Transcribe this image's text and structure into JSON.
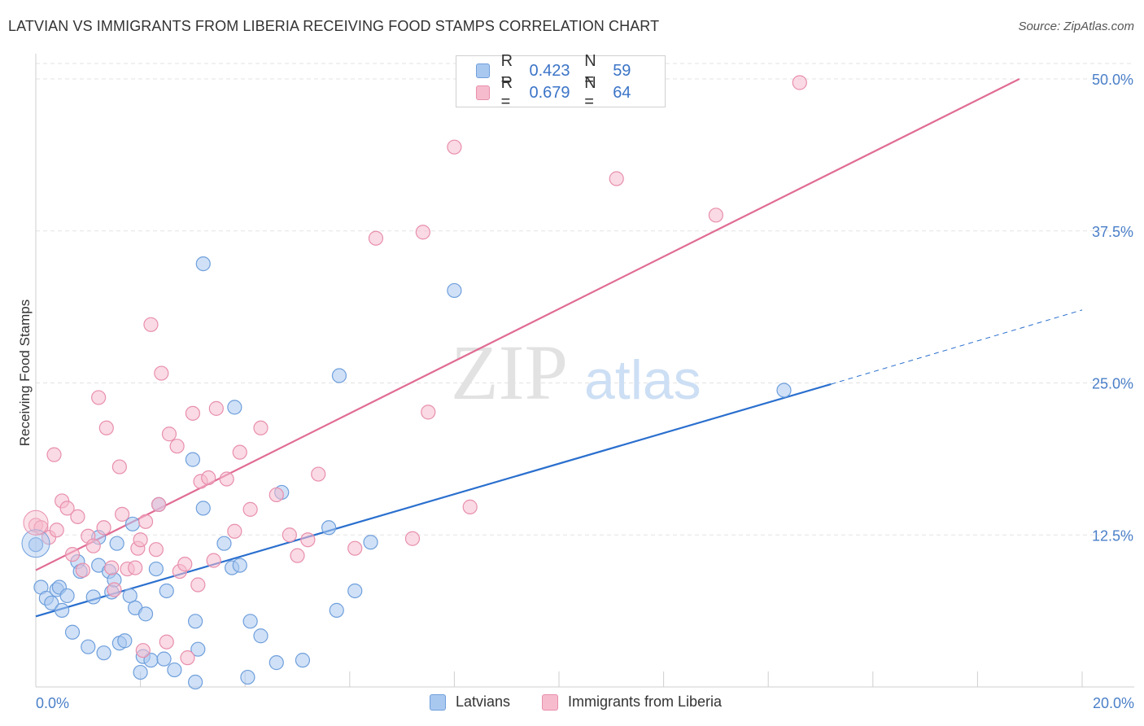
{
  "title": "LATVIAN VS IMMIGRANTS FROM LIBERIA RECEIVING FOOD STAMPS CORRELATION CHART",
  "source": "Source: ZipAtlas.com",
  "watermark": {
    "zip": "ZIP",
    "atlas": "atlas"
  },
  "colors": {
    "latvian_fill": "#a9c8f0",
    "latvian_stroke": "#6f9fdc",
    "latvian_line": "#2a6fce",
    "liberia_fill": "#f6bccd",
    "liberia_stroke": "#e88fac",
    "liberia_line": "#e06c94",
    "grid": "#e3e3e3",
    "tick_text": "#4a7fc8"
  },
  "legend": {
    "rows": [
      {
        "r_label": "R =",
        "r_value": "0.423",
        "n_label": "N =",
        "n_value": "59"
      },
      {
        "r_label": "R =",
        "r_value": "0.679",
        "n_label": "N =",
        "n_value": "64"
      }
    ]
  },
  "bottom_legend": [
    "Latvians",
    "Immigrants from Liberia"
  ],
  "chart_data": {
    "type": "scatter",
    "title": "LATVIAN VS IMMIGRANTS FROM LIBERIA RECEIVING FOOD STAMPS CORRELATION CHART",
    "xlabel": "",
    "ylabel": "Receiving Food Stamps",
    "xlim": [
      0,
      20
    ],
    "ylim": [
      0,
      50
    ],
    "x_tick_labels": [
      "0.0%",
      "20.0%"
    ],
    "y_ticks": [
      12.5,
      25.0,
      37.5,
      50.0
    ],
    "y_tick_labels": [
      "12.5%",
      "25.0%",
      "37.5%",
      "50.0%"
    ],
    "grid": true,
    "legend_position": "top-center",
    "series": [
      {
        "name": "Latvians",
        "r": 0.423,
        "n": 59,
        "trend": {
          "x": [
            0,
            15.2
          ],
          "y": [
            5.8,
            24.9
          ],
          "dashed_extension": {
            "x": [
              15.2,
              20.0
            ],
            "y": [
              24.9,
              31.0
            ]
          }
        },
        "points": [
          [
            0.0,
            11.7
          ],
          [
            0.1,
            8.2
          ],
          [
            0.2,
            7.3
          ],
          [
            0.3,
            6.9
          ],
          [
            0.4,
            8.0
          ],
          [
            0.45,
            8.2
          ],
          [
            0.5,
            6.3
          ],
          [
            0.6,
            7.5
          ],
          [
            0.7,
            4.5
          ],
          [
            0.8,
            10.3
          ],
          [
            0.85,
            9.5
          ],
          [
            1.0,
            3.3
          ],
          [
            1.1,
            7.4
          ],
          [
            1.2,
            12.3
          ],
          [
            1.2,
            10.0
          ],
          [
            1.3,
            2.8
          ],
          [
            1.4,
            9.5
          ],
          [
            1.45,
            7.8
          ],
          [
            1.5,
            8.8
          ],
          [
            1.55,
            11.8
          ],
          [
            1.6,
            3.6
          ],
          [
            1.7,
            3.8
          ],
          [
            1.8,
            7.5
          ],
          [
            1.85,
            13.4
          ],
          [
            1.9,
            6.5
          ],
          [
            2.0,
            1.2
          ],
          [
            2.05,
            2.5
          ],
          [
            2.1,
            6.0
          ],
          [
            2.2,
            2.2
          ],
          [
            2.3,
            9.7
          ],
          [
            2.35,
            15.0
          ],
          [
            2.45,
            2.3
          ],
          [
            2.5,
            7.9
          ],
          [
            2.65,
            1.4
          ],
          [
            3.0,
            18.7
          ],
          [
            3.05,
            5.4
          ],
          [
            3.05,
            0.4
          ],
          [
            3.1,
            3.1
          ],
          [
            3.2,
            14.7
          ],
          [
            3.2,
            34.8
          ],
          [
            3.6,
            11.8
          ],
          [
            3.75,
            9.8
          ],
          [
            3.8,
            23.0
          ],
          [
            3.9,
            10.0
          ],
          [
            4.05,
            0.8
          ],
          [
            4.1,
            5.4
          ],
          [
            4.3,
            4.2
          ],
          [
            4.6,
            2.0
          ],
          [
            4.7,
            16.0
          ],
          [
            5.1,
            2.2
          ],
          [
            5.6,
            13.1
          ],
          [
            5.8,
            25.6
          ],
          [
            5.75,
            6.3
          ],
          [
            6.1,
            7.9
          ],
          [
            6.4,
            11.9
          ],
          [
            8.0,
            32.6
          ],
          [
            14.3,
            24.4
          ]
        ]
      },
      {
        "name": "Immigrants from Liberia",
        "r": 0.679,
        "n": 64,
        "trend": {
          "x": [
            0,
            18.8
          ],
          "y": [
            9.6,
            50.0
          ]
        },
        "points": [
          [
            0.0,
            13.3
          ],
          [
            0.1,
            13.1
          ],
          [
            0.25,
            12.3
          ],
          [
            0.35,
            19.1
          ],
          [
            0.4,
            12.9
          ],
          [
            0.5,
            15.3
          ],
          [
            0.6,
            14.7
          ],
          [
            0.7,
            10.9
          ],
          [
            0.8,
            14.0
          ],
          [
            0.9,
            9.6
          ],
          [
            1.0,
            12.4
          ],
          [
            1.1,
            11.6
          ],
          [
            1.2,
            23.8
          ],
          [
            1.3,
            13.1
          ],
          [
            1.35,
            21.3
          ],
          [
            1.45,
            9.8
          ],
          [
            1.5,
            8.0
          ],
          [
            1.6,
            18.1
          ],
          [
            1.65,
            14.2
          ],
          [
            1.75,
            9.7
          ],
          [
            1.9,
            9.8
          ],
          [
            1.95,
            11.4
          ],
          [
            2.0,
            12.1
          ],
          [
            2.05,
            3.0
          ],
          [
            2.1,
            13.6
          ],
          [
            2.2,
            29.8
          ],
          [
            2.3,
            11.3
          ],
          [
            2.35,
            15.0
          ],
          [
            2.4,
            25.8
          ],
          [
            2.5,
            3.7
          ],
          [
            2.55,
            20.8
          ],
          [
            2.7,
            19.8
          ],
          [
            2.75,
            9.5
          ],
          [
            2.85,
            10.1
          ],
          [
            2.9,
            2.4
          ],
          [
            3.0,
            22.5
          ],
          [
            3.1,
            8.4
          ],
          [
            3.15,
            16.9
          ],
          [
            3.3,
            17.2
          ],
          [
            3.4,
            10.4
          ],
          [
            3.45,
            22.9
          ],
          [
            3.65,
            17.1
          ],
          [
            3.8,
            12.8
          ],
          [
            3.9,
            19.3
          ],
          [
            4.1,
            14.6
          ],
          [
            4.3,
            21.3
          ],
          [
            4.6,
            15.8
          ],
          [
            4.85,
            12.5
          ],
          [
            5.0,
            10.8
          ],
          [
            5.2,
            12.1
          ],
          [
            5.4,
            17.5
          ],
          [
            6.1,
            11.4
          ],
          [
            6.5,
            36.9
          ],
          [
            7.2,
            12.2
          ],
          [
            7.4,
            37.4
          ],
          [
            7.5,
            22.6
          ],
          [
            8.0,
            44.4
          ],
          [
            8.3,
            14.8
          ],
          [
            11.1,
            41.8
          ],
          [
            13.0,
            38.8
          ],
          [
            14.6,
            49.7
          ]
        ]
      }
    ]
  }
}
